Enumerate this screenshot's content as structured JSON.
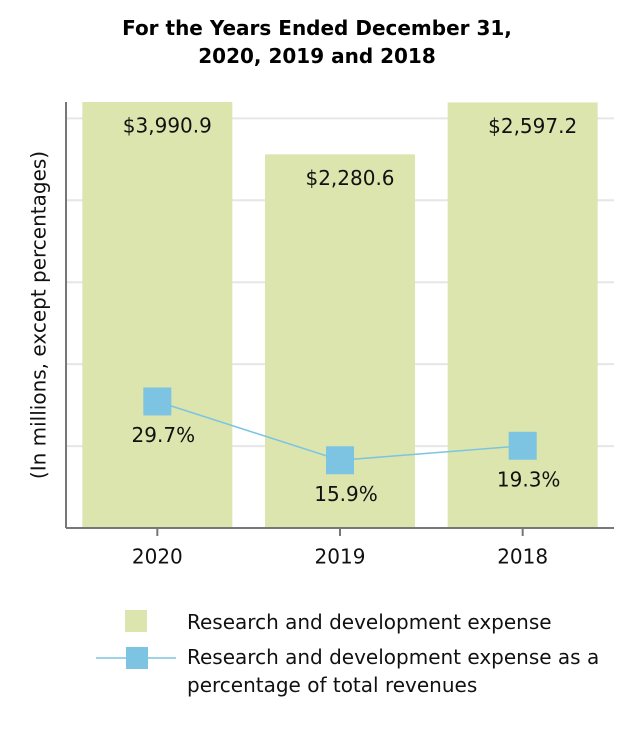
{
  "chart_data": {
    "type": "bar",
    "title": "For the Years Ended December 31,\n2020, 2019 and 2018",
    "ylabel": "(In millions, except percentages)",
    "categories": [
      "2020",
      "2019",
      "2018"
    ],
    "series": [
      {
        "name": "Research and development expense",
        "type": "bar",
        "axis": "y",
        "color": "#dce5ae",
        "values": [
          3990.9,
          2280.6,
          2597.2
        ],
        "value_labels": [
          "$3,990.9",
          "$2,280.6",
          "$2,597.2"
        ]
      },
      {
        "name": "Research and development expense as a\npercentage of total revenues",
        "type": "line",
        "axis": "y2",
        "color": "#7dc4e2",
        "values": [
          29.7,
          15.9,
          19.3
        ],
        "value_labels": [
          "29.7%",
          "15.9%",
          "19.3%"
        ]
      }
    ],
    "ylim": [
      0,
      2600
    ],
    "yticks": [
      0,
      500,
      1000,
      1500,
      2000,
      2500
    ],
    "y2lim": [
      0,
      100
    ],
    "grid": true
  }
}
